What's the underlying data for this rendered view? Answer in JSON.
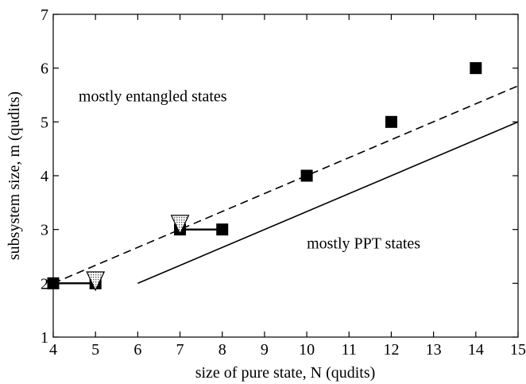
{
  "chart_data": {
    "type": "scatter",
    "xlabel": "size of pure state, N (qudits)",
    "ylabel": "subsystem size, m (qudits)",
    "xlim": [
      4,
      15
    ],
    "ylim": [
      1,
      7
    ],
    "xticks": [
      4,
      5,
      6,
      7,
      8,
      9,
      10,
      11,
      12,
      13,
      14,
      15
    ],
    "yticks": [
      1,
      2,
      3,
      4,
      5,
      6,
      7
    ],
    "grid": false,
    "series": [
      {
        "type": "scatter",
        "marker": "filled-square",
        "color": "#000000",
        "x": [
          4,
          5,
          7,
          8,
          10,
          12,
          14
        ],
        "y": [
          2,
          2,
          3,
          3,
          4,
          5,
          6
        ]
      },
      {
        "type": "scatter",
        "marker": "dotted-down-triangle",
        "color": "#ffffff",
        "x": [
          5,
          7
        ],
        "y": [
          2.05,
          3.1
        ]
      },
      {
        "type": "line",
        "style": "dashed",
        "color": "#000000",
        "x": [
          4,
          15
        ],
        "y": [
          2,
          5.67
        ]
      },
      {
        "type": "line",
        "style": "solid",
        "color": "#000000",
        "x": [
          6,
          15
        ],
        "y": [
          2,
          5
        ]
      },
      {
        "type": "segments",
        "style": "solid",
        "color": "#000000",
        "segments": [
          {
            "x": [
              4,
              5
            ],
            "y": [
              2,
              2
            ]
          },
          {
            "x": [
              7,
              8
            ],
            "y": [
              3,
              3
            ]
          }
        ]
      }
    ],
    "annotations": [
      {
        "text": "mostly entangled states",
        "x": 4.6,
        "y": 5.38
      },
      {
        "text": "mostly PPT states",
        "x": 10.0,
        "y": 2.65
      }
    ]
  }
}
